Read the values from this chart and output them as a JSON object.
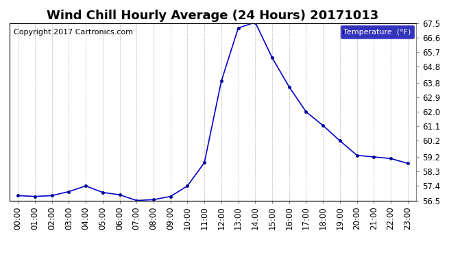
{
  "title": "Wind Chill Hourly Average (24 Hours) 20171013",
  "copyright_text": "Copyright 2017 Cartronics.com",
  "legend_label": "Temperature  (°F)",
  "hours": [
    "00:00",
    "01:00",
    "02:00",
    "03:00",
    "04:00",
    "05:00",
    "06:00",
    "07:00",
    "08:00",
    "09:00",
    "10:00",
    "11:00",
    "12:00",
    "13:00",
    "14:00",
    "15:00",
    "16:00",
    "17:00",
    "18:00",
    "19:00",
    "20:00",
    "21:00",
    "22:00",
    "23:00"
  ],
  "values": [
    56.8,
    56.75,
    56.8,
    57.05,
    57.4,
    57.0,
    56.85,
    56.5,
    56.55,
    56.75,
    57.4,
    58.85,
    63.9,
    67.2,
    67.55,
    65.35,
    63.55,
    62.0,
    61.15,
    60.2,
    59.3,
    59.2,
    59.1,
    58.8
  ],
  "ylim_min": 56.5,
  "ylim_max": 67.5,
  "yticks": [
    56.5,
    57.4,
    58.3,
    59.2,
    60.2,
    61.1,
    62.0,
    62.9,
    63.8,
    64.8,
    65.7,
    66.6,
    67.5
  ],
  "ytick_labels": [
    "56.5",
    "57.4",
    "58.3",
    "59.2",
    "60.2",
    "61.1",
    "62.0",
    "62.9",
    "63.8",
    "64.8",
    "65.7",
    "66.6",
    "67.5"
  ],
  "line_color": "#0000cc",
  "marker_color": "#000099",
  "bg_color": "#ffffff",
  "grid_color": "#bbbbbb",
  "legend_bg": "#0000aa",
  "legend_text_color": "#ffffff",
  "title_fontsize": 13,
  "axis_fontsize": 8.5,
  "copyright_fontsize": 8
}
